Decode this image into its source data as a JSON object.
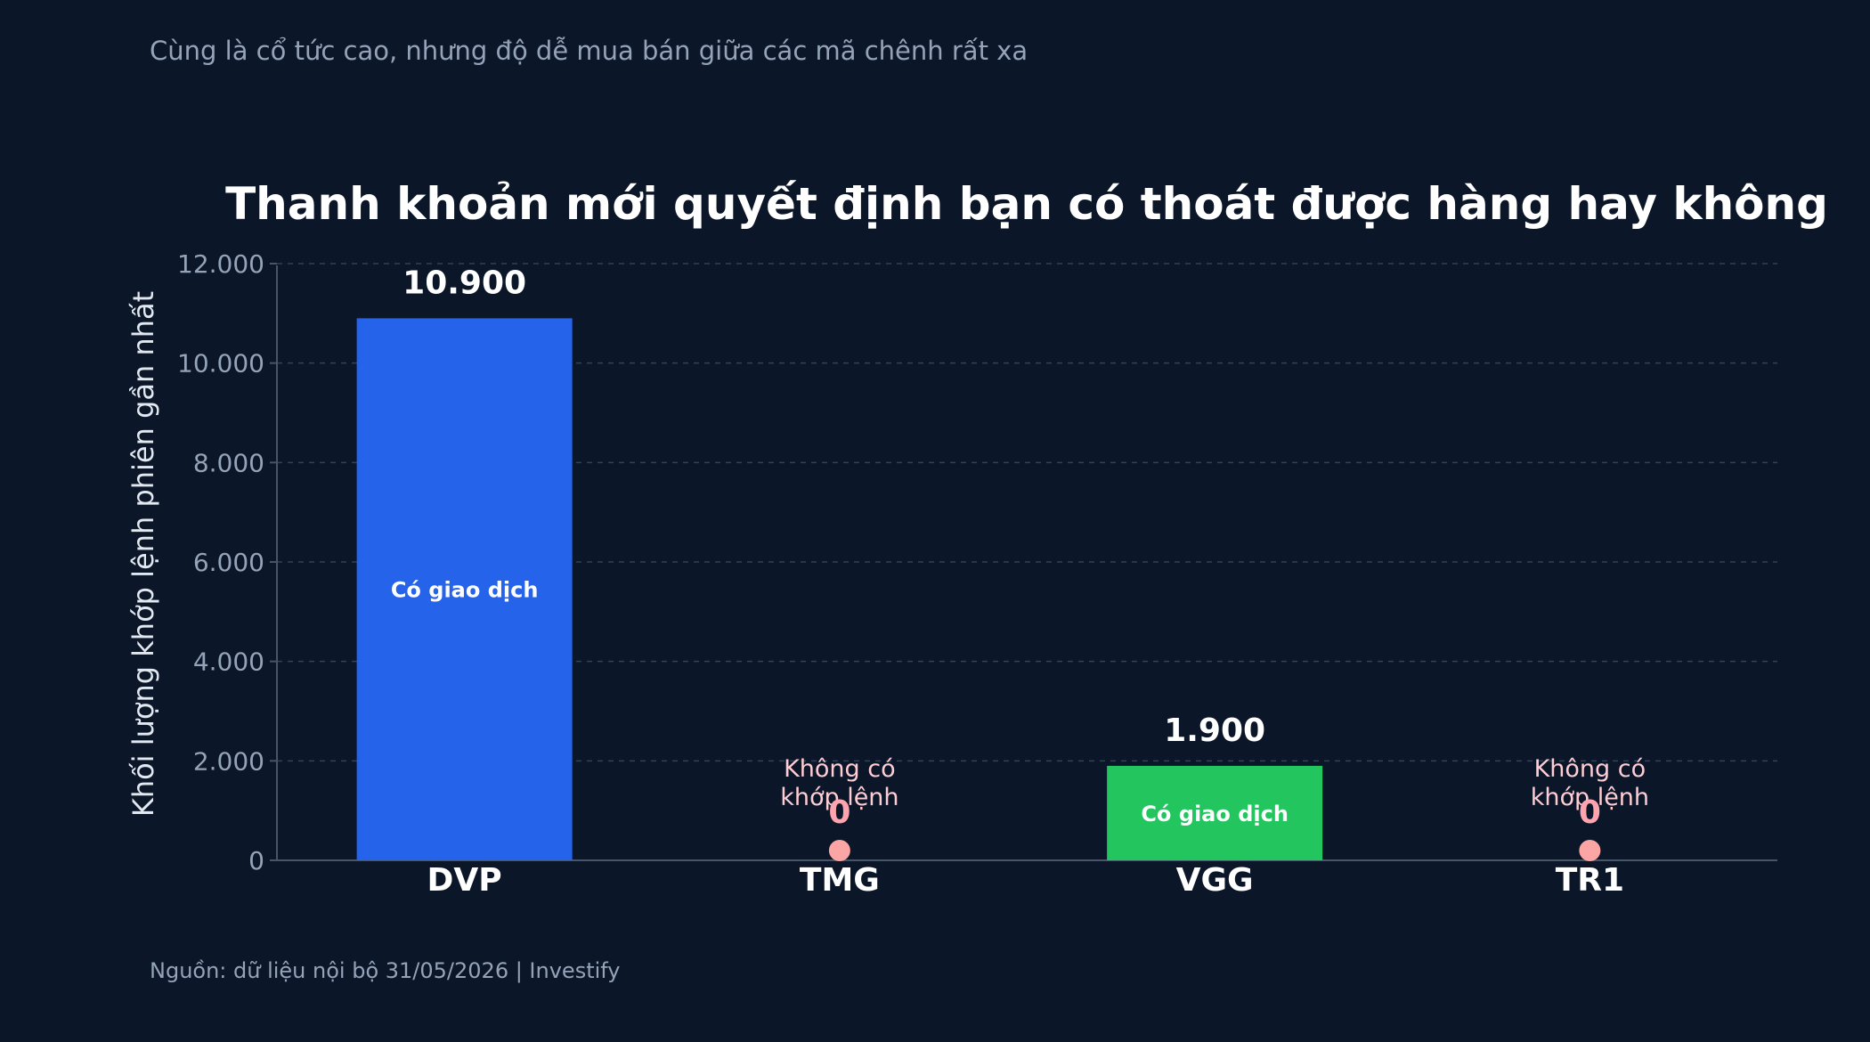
{
  "subtitle": "Cùng là cổ tức cao, nhưng độ dễ mua bán giữa các mã chênh rất xa",
  "source": "Nguồn: dữ liệu nội bộ 31/05/2026 | Investify",
  "chart_data": {
    "type": "bar",
    "title": "Thanh khoản mới quyết định bạn có thoát được hàng hay không",
    "xlabel": "",
    "ylabel": "Khối lượng khớp lệnh phiên gần nhất",
    "categories": [
      "DVP",
      "TMG",
      "VGG",
      "TR1"
    ],
    "values": [
      10900,
      0,
      1900,
      0
    ],
    "value_labels": [
      "10.900",
      "0",
      "1.900",
      "0"
    ],
    "bar_notes": [
      "Có giao dịch",
      "Không có khớp lệnh",
      "Có giao dịch",
      "Không có khớp lệnh"
    ],
    "bar_colors": [
      "#2563eb",
      "#fca5a5",
      "#22c55e",
      "#fca5a5"
    ],
    "ylim": [
      0,
      12500
    ],
    "yticks": [
      0,
      2000,
      4000,
      6000,
      8000,
      10000,
      12000
    ],
    "ytick_labels": [
      "0",
      "2.000",
      "4.000",
      "6.000",
      "8.000",
      "10.000",
      "12.000"
    ],
    "grid": true,
    "legend": "none"
  }
}
